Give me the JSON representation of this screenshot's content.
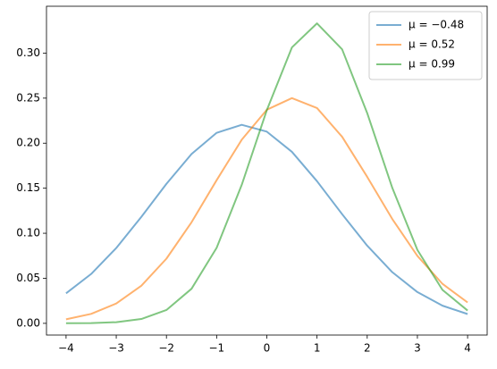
{
  "chart_data": {
    "type": "line",
    "x": [
      -4,
      -3.5,
      -3,
      -2.5,
      -2,
      -1.5,
      -1,
      -0.5,
      0,
      0.5,
      1,
      1.5,
      2,
      2.5,
      3,
      3.5,
      4
    ],
    "series": [
      {
        "name": "μ = −0.48",
        "color": "#1f77b4",
        "values": [
          0.0333,
          0.0548,
          0.0836,
          0.1182,
          0.1549,
          0.188,
          0.2115,
          0.2204,
          0.2128,
          0.1904,
          0.1578,
          0.1212,
          0.0862,
          0.0568,
          0.0347,
          0.0196,
          0.0103
        ]
      },
      {
        "name": "μ = 0.52",
        "color": "#ff7f0e",
        "values": [
          0.0045,
          0.0105,
          0.022,
          0.0417,
          0.0718,
          0.1122,
          0.1589,
          0.2038,
          0.2371,
          0.25,
          0.239,
          0.2071,
          0.1626,
          0.1158,
          0.0748,
          0.0438,
          0.0232
        ]
      },
      {
        "name": "μ = 0.99",
        "color": "#2ca02c",
        "values": [
          0.0001,
          0.0003,
          0.0013,
          0.0048,
          0.0148,
          0.0384,
          0.0838,
          0.1537,
          0.2367,
          0.3063,
          0.333,
          0.3042,
          0.2334,
          0.1504,
          0.0815,
          0.0371,
          0.0142
        ]
      }
    ],
    "alpha": 0.6,
    "xlim": [
      -4.39,
      4.39
    ],
    "ylim": [
      -0.013,
      0.352
    ],
    "xticks": [
      {
        "value": -4,
        "label": "−4"
      },
      {
        "value": -3,
        "label": "−3"
      },
      {
        "value": -2,
        "label": "−2"
      },
      {
        "value": -1,
        "label": "−1"
      },
      0,
      1,
      2,
      3,
      4
    ],
    "yticks": [
      {
        "value": 0,
        "label": "0.00"
      },
      {
        "value": 0.05,
        "label": "0.05"
      },
      {
        "value": 0.1,
        "label": "0.10"
      },
      {
        "value": 0.15,
        "label": "0.15"
      },
      {
        "value": 0.2,
        "label": "0.20"
      },
      {
        "value": 0.25,
        "label": "0.25"
      },
      {
        "value": 0.3,
        "label": "0.30"
      }
    ],
    "legend": "upper right"
  }
}
